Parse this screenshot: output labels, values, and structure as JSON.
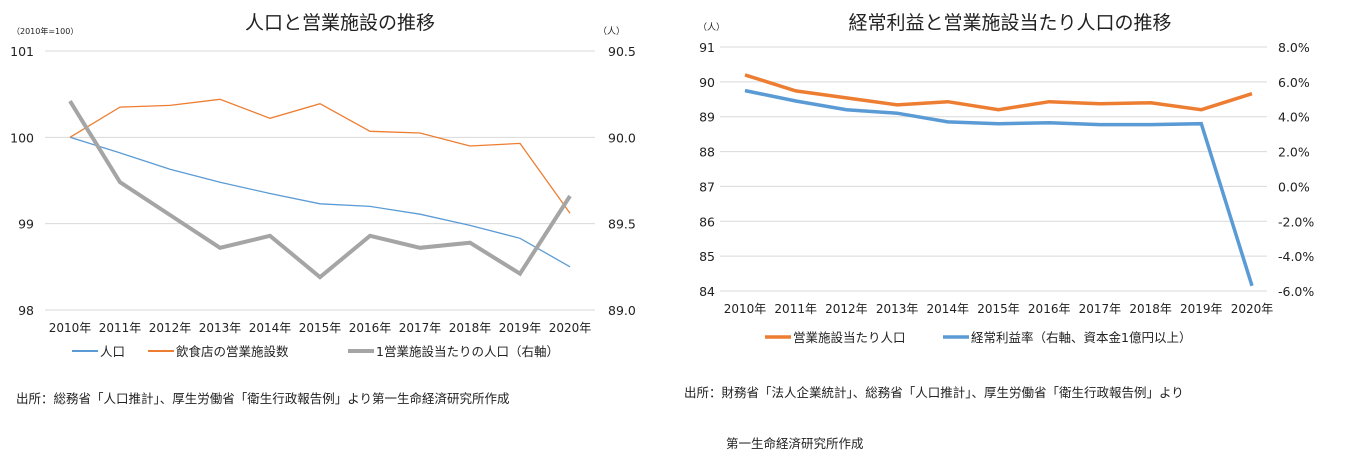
{
  "chart_data": [
    {
      "type": "line",
      "title": "人口と営業施設の推移",
      "left_axis_label": "（2010年=100）",
      "right_axis_label": "（人）",
      "categories": [
        "2010年",
        "2011年",
        "2012年",
        "2013年",
        "2014年",
        "2015年",
        "2016年",
        "2017年",
        "2018年",
        "2019年",
        "2020年"
      ],
      "ylim_left": [
        98,
        101
      ],
      "yticks_left": [
        "101",
        "100",
        "99",
        "98"
      ],
      "ylim_right": [
        89.0,
        90.5
      ],
      "yticks_right": [
        "90.5",
        "90.0",
        "89.5",
        "89.0"
      ],
      "grid": true,
      "legend_position": "bottom",
      "series": [
        {
          "name": "人口",
          "axis": "left",
          "color": "#5b9bd5",
          "width": "thin",
          "values": [
            100,
            99.82,
            99.63,
            99.48,
            99.35,
            99.23,
            99.2,
            99.11,
            98.98,
            98.83,
            98.5
          ]
        },
        {
          "name": "飲食店の営業施設数",
          "axis": "left",
          "color": "#ed7d31",
          "width": "thin",
          "values": [
            100,
            100.35,
            100.37,
            100.44,
            100.22,
            100.39,
            100.07,
            100.05,
            99.9,
            99.93,
            99.12
          ]
        },
        {
          "name": "1営業施設当たりの人口（右軸）",
          "axis": "right",
          "color": "#a5a5a5",
          "width": "thick",
          "values": [
            90.21,
            89.74,
            89.55,
            89.36,
            89.43,
            89.19,
            89.43,
            89.36,
            89.39,
            89.21,
            89.66
          ]
        }
      ],
      "source": "出所：総務省「人口推計」、厚生労働省「衛生行政報告例」より第一生命経済研究所作成"
    },
    {
      "type": "line",
      "title": "経常利益と営業施設当たり人口の推移",
      "left_axis_label": "（人）",
      "categories": [
        "2010年",
        "2011年",
        "2012年",
        "2013年",
        "2014年",
        "2015年",
        "2016年",
        "2017年",
        "2018年",
        "2019年",
        "2020年"
      ],
      "ylim_left": [
        84,
        91
      ],
      "yticks_left": [
        "91",
        "90",
        "89",
        "88",
        "87",
        "86",
        "85",
        "84"
      ],
      "ylim_right": [
        -6.0,
        8.0
      ],
      "yticks_right": [
        "8.0%",
        "6.0%",
        "4.0%",
        "2.0%",
        "0.0%",
        "-2.0%",
        "-4.0%",
        "-6.0%"
      ],
      "grid": true,
      "legend_position": "bottom",
      "series": [
        {
          "name": "営業施設当たり人口",
          "axis": "left",
          "color": "#ed7d31",
          "width": "thick",
          "values": [
            90.2,
            89.74,
            89.54,
            89.34,
            89.43,
            89.2,
            89.43,
            89.37,
            89.4,
            89.2,
            89.66
          ]
        },
        {
          "name": "経常利益率（右軸、資本金1億円以上）",
          "axis": "right",
          "color": "#5b9bd5",
          "width": "thick",
          "values": [
            5.5,
            4.9,
            4.4,
            4.2,
            3.7,
            3.6,
            3.65,
            3.55,
            3.55,
            3.6,
            -5.7
          ]
        }
      ],
      "source_line1": "出所：財務省「法人企業統計」、総務省「人口推計」、厚生労働省「衛生行政報告例」より",
      "source_line2": "第一生命経済研究所作成"
    }
  ]
}
